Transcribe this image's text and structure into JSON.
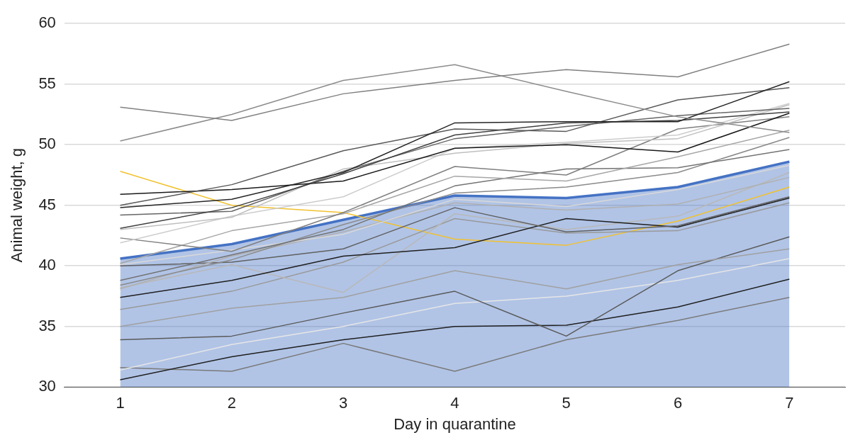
{
  "chart_data": {
    "type": "line",
    "xlabel": "Day in quarantine",
    "ylabel": "Animal weight, g",
    "categories": [
      "1",
      "2",
      "3",
      "4",
      "5",
      "6",
      "7"
    ],
    "ylim": [
      30,
      60
    ],
    "yticks": [
      30,
      35,
      40,
      45,
      50,
      55,
      60
    ],
    "grid": "y",
    "legend": false,
    "marker": "none",
    "line_style": "solid",
    "series": [
      {
        "type": "area",
        "color": "#4472c4",
        "values": [
          40.6,
          41.8,
          43.8,
          45.8,
          45.6,
          46.5,
          48.6
        ]
      },
      {
        "color": "#808080",
        "values": [
          53.1,
          52.0,
          54.2,
          55.3,
          56.2,
          55.6,
          58.3
        ]
      },
      {
        "color": "#8c8c8c",
        "values": [
          50.3,
          52.5,
          55.3,
          56.6,
          54.4,
          52.3,
          51.0
        ]
      },
      {
        "color": "#262626",
        "values": [
          44.8,
          45.5,
          47.7,
          51.8,
          51.9,
          51.9,
          55.2
        ]
      },
      {
        "color": "#595959",
        "values": [
          45.0,
          46.7,
          49.5,
          51.3,
          51.1,
          53.7,
          54.7
        ]
      },
      {
        "color": "#404040",
        "values": [
          43.1,
          44.8,
          47.6,
          50.8,
          51.8,
          52.0,
          52.7
        ]
      },
      {
        "color": "#1a1a1a",
        "values": [
          45.9,
          46.3,
          47.0,
          49.7,
          50.0,
          49.4,
          52.6
        ]
      },
      {
        "color": "#666666",
        "values": [
          44.2,
          44.5,
          47.8,
          50.5,
          51.5,
          52.4,
          53.0
        ]
      },
      {
        "color": "#bfbfbf",
        "values": [
          43.0,
          44.0,
          48.0,
          49.3,
          50.1,
          50.5,
          53.3
        ]
      },
      {
        "color": "#cccccc",
        "values": [
          41.9,
          44.1,
          45.7,
          49.7,
          50.2,
          50.8,
          53.4
        ]
      },
      {
        "color": "#7f7f7f",
        "values": [
          42.3,
          41.2,
          44.4,
          48.2,
          47.5,
          51.3,
          52.3
        ]
      },
      {
        "color": "#a6a6a6",
        "values": [
          40.2,
          42.9,
          44.3,
          47.4,
          47.0,
          49.0,
          51.2
        ]
      },
      {
        "color": "#737373",
        "values": [
          38.8,
          40.9,
          43.0,
          46.6,
          48.0,
          48.1,
          49.6
        ]
      },
      {
        "color": "#8a8a8a",
        "values": [
          38.4,
          40.5,
          43.4,
          46.0,
          46.5,
          47.7,
          50.6
        ]
      },
      {
        "color": "#d9d9d9",
        "values": [
          40.1,
          41.3,
          42.6,
          45.5,
          44.9,
          46.3,
          48.3
        ]
      },
      {
        "color": "#b0b0b0",
        "values": [
          38.1,
          40.8,
          42.8,
          45.2,
          44.6,
          45.1,
          47.3
        ]
      },
      {
        "color": "#606060",
        "values": [
          40.0,
          40.3,
          41.4,
          44.8,
          42.8,
          43.3,
          45.7
        ]
      },
      {
        "color": "#1f1f1f",
        "values": [
          37.4,
          38.8,
          40.8,
          41.5,
          43.9,
          43.2,
          45.6
        ]
      },
      {
        "color": "#b8b8b8",
        "values": [
          38.2,
          40.1,
          37.8,
          44.3,
          43.0,
          44.1,
          47.7
        ]
      },
      {
        "color": "#999999",
        "values": [
          36.4,
          37.9,
          40.3,
          43.9,
          42.7,
          42.9,
          45.2
        ]
      },
      {
        "color": "#a0a0a0",
        "values": [
          35.0,
          36.5,
          37.4,
          39.6,
          38.1,
          40.1,
          41.4
        ]
      },
      {
        "color": "#5a5a5a",
        "values": [
          33.9,
          34.2,
          36.1,
          37.9,
          34.2,
          39.6,
          42.4
        ]
      },
      {
        "color": "#e6e6e6",
        "values": [
          31.4,
          33.5,
          35.0,
          36.9,
          37.5,
          38.8,
          40.6
        ]
      },
      {
        "color": "#202020",
        "values": [
          30.6,
          32.5,
          33.9,
          35.0,
          35.1,
          36.6,
          38.9
        ]
      },
      {
        "color": "#7a7a7a",
        "values": [
          31.6,
          31.3,
          33.6,
          31.3,
          33.9,
          35.5,
          37.4
        ]
      },
      {
        "color": "#f2c12e",
        "values": [
          47.8,
          45.0,
          44.4,
          42.2,
          41.7,
          43.7,
          46.5
        ]
      }
    ]
  }
}
